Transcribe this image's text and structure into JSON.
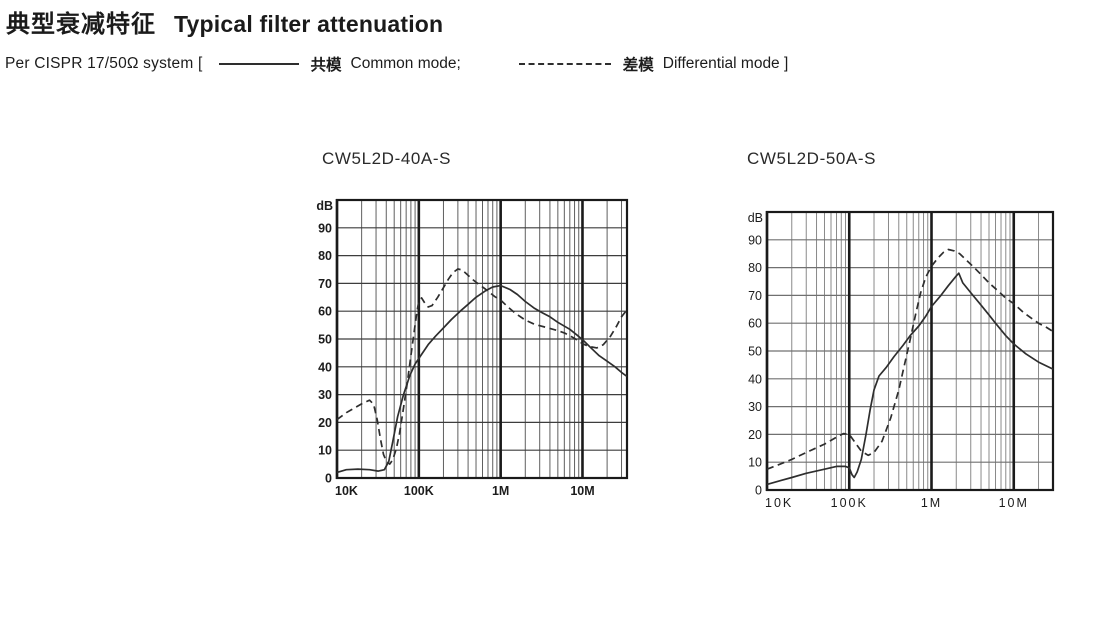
{
  "header": {
    "title_cn": "典型衰减特征",
    "title_en": "Typical filter attenuation"
  },
  "legend": {
    "prefix": "Per CISPR 17/50Ω  system  [",
    "common_cn": "共模",
    "common_en": "Common mode;",
    "diff_cn": "差模",
    "diff_en": "Differential mode ]"
  },
  "colors": {
    "text": "#1c1c1c",
    "curve": "#2e2e2e",
    "grid_decade": "#1a1a1a",
    "border": "#1a1a1a"
  },
  "chart_data": [
    {
      "type": "line",
      "title": "CW5L2D-40A-S",
      "ylabel": "dB",
      "ylim": [
        0,
        100
      ],
      "yticks": [
        0,
        10,
        20,
        30,
        40,
        50,
        60,
        70,
        80,
        90
      ],
      "xscale": "log",
      "xlim": [
        10000,
        35000000
      ],
      "xticks": [
        {
          "f": 10000,
          "label": "10K"
        },
        {
          "f": 100000,
          "label": "100K"
        },
        {
          "f": 1000000,
          "label": "1M"
        },
        {
          "f": 10000000,
          "label": "10M"
        }
      ],
      "bold_ticks": true,
      "tick_letter_spacing": 0,
      "grid_minor_color": "#5f5f5f",
      "grid_h_color": "#3d3d3d",
      "series": [
        {
          "name": "共模 Common mode",
          "style": "solid",
          "points": [
            [
              10000,
              2
            ],
            [
              13000,
              3
            ],
            [
              18000,
              3.2
            ],
            [
              25000,
              3
            ],
            [
              32000,
              2.5
            ],
            [
              38000,
              3
            ],
            [
              43000,
              6
            ],
            [
              48000,
              13
            ],
            [
              55000,
              22
            ],
            [
              65000,
              30
            ],
            [
              78000,
              37
            ],
            [
              90000,
              41
            ],
            [
              100000,
              43
            ],
            [
              130000,
              48
            ],
            [
              160000,
              51
            ],
            [
              200000,
              54
            ],
            [
              250000,
              57
            ],
            [
              320000,
              60
            ],
            [
              400000,
              62.5
            ],
            [
              500000,
              65
            ],
            [
              650000,
              67.3
            ],
            [
              800000,
              68.7
            ],
            [
              1000000,
              69.2
            ],
            [
              1300000,
              67.8
            ],
            [
              1600000,
              66
            ],
            [
              2000000,
              63.5
            ],
            [
              2600000,
              61
            ],
            [
              3200000,
              59.5
            ],
            [
              4000000,
              58
            ],
            [
              5000000,
              56
            ],
            [
              7000000,
              53.5
            ],
            [
              8500000,
              51.5
            ],
            [
              10000000,
              49.8
            ],
            [
              13000000,
              46.5
            ],
            [
              16000000,
              44
            ],
            [
              20000000,
              42
            ],
            [
              25000000,
              40
            ],
            [
              30000000,
              38
            ],
            [
              35000000,
              36.5
            ]
          ]
        },
        {
          "name": "差模 Differential mode",
          "style": "dashed",
          "points": [
            [
              10000,
              21
            ],
            [
              13000,
              23.5
            ],
            [
              17000,
              25.5
            ],
            [
              21000,
              27
            ],
            [
              25000,
              28
            ],
            [
              28000,
              26.5
            ],
            [
              31000,
              21
            ],
            [
              34000,
              14
            ],
            [
              37000,
              8.5
            ],
            [
              40000,
              6
            ],
            [
              44000,
              5
            ],
            [
              48000,
              6.5
            ],
            [
              53000,
              10.5
            ],
            [
              58000,
              16
            ],
            [
              64000,
              24
            ],
            [
              72000,
              34
            ],
            [
              80000,
              44
            ],
            [
              88000,
              53
            ],
            [
              95000,
              60
            ],
            [
              100000,
              63.5
            ],
            [
              108000,
              64.8
            ],
            [
              118000,
              63
            ],
            [
              130000,
              61.5
            ],
            [
              145000,
              62
            ],
            [
              170000,
              65
            ],
            [
              200000,
              68.5
            ],
            [
              230000,
              71.5
            ],
            [
              260000,
              73.8
            ],
            [
              300000,
              75.2
            ],
            [
              340000,
              74.8
            ],
            [
              390000,
              73.2
            ],
            [
              450000,
              71.5
            ],
            [
              550000,
              69.5
            ],
            [
              650000,
              68
            ],
            [
              750000,
              66.5
            ],
            [
              850000,
              65.2
            ],
            [
              1000000,
              64
            ],
            [
              1200000,
              61.8
            ],
            [
              1500000,
              59.3
            ],
            [
              2000000,
              56.8
            ],
            [
              2500000,
              55.5
            ],
            [
              3000000,
              54.8
            ],
            [
              4000000,
              53.8
            ],
            [
              5000000,
              53
            ],
            [
              6000000,
              52.2
            ],
            [
              8000000,
              50.2
            ],
            [
              10000000,
              48.3
            ],
            [
              12000000,
              47.3
            ],
            [
              15000000,
              46.8
            ],
            [
              18000000,
              48
            ],
            [
              22000000,
              51
            ],
            [
              26000000,
              54.5
            ],
            [
              30000000,
              58
            ],
            [
              35000000,
              60.5
            ]
          ]
        }
      ]
    },
    {
      "type": "line",
      "title": "CW5L2D-50A-S",
      "ylabel": "dB",
      "ylim": [
        0,
        100
      ],
      "yticks": [
        0,
        10,
        20,
        30,
        40,
        50,
        60,
        70,
        80,
        90
      ],
      "xscale": "log",
      "xlim": [
        10000,
        30000000
      ],
      "xticks": [
        {
          "f": 10000,
          "label": "10K"
        },
        {
          "f": 100000,
          "label": "100K"
        },
        {
          "f": 1000000,
          "label": "1M"
        },
        {
          "f": 10000000,
          "label": "10M"
        }
      ],
      "bold_ticks": false,
      "tick_letter_spacing": 2,
      "grid_minor_color": "#8a8a8a",
      "grid_h_color": "#707070",
      "series": [
        {
          "name": "共模 Common mode",
          "style": "solid",
          "points": [
            [
              10000,
              2
            ],
            [
              15000,
              3.5
            ],
            [
              20000,
              4.5
            ],
            [
              30000,
              6
            ],
            [
              50000,
              7.5
            ],
            [
              70000,
              8.5
            ],
            [
              90000,
              8.5
            ],
            [
              100000,
              8
            ],
            [
              108000,
              5.5
            ],
            [
              115000,
              4.5
            ],
            [
              125000,
              6.5
            ],
            [
              140000,
              11
            ],
            [
              160000,
              20
            ],
            [
              180000,
              29
            ],
            [
              200000,
              36
            ],
            [
              230000,
              41
            ],
            [
              280000,
              44
            ],
            [
              350000,
              48
            ],
            [
              450000,
              52
            ],
            [
              550000,
              55.5
            ],
            [
              700000,
              59
            ],
            [
              850000,
              62.5
            ],
            [
              1000000,
              66
            ],
            [
              1300000,
              70
            ],
            [
              1600000,
              73.5
            ],
            [
              2000000,
              77
            ],
            [
              2150000,
              78
            ],
            [
              2400000,
              74.5
            ],
            [
              3000000,
              71
            ],
            [
              4000000,
              66.5
            ],
            [
              5000000,
              63
            ],
            [
              6000000,
              60
            ],
            [
              8000000,
              55.5
            ],
            [
              10000000,
              52.5
            ],
            [
              14000000,
              49
            ],
            [
              20000000,
              46
            ],
            [
              30000000,
              43.5
            ]
          ]
        },
        {
          "name": "差模 Differential mode",
          "style": "dashed",
          "points": [
            [
              10000,
              7.5
            ],
            [
              15000,
              9.5
            ],
            [
              20000,
              11
            ],
            [
              30000,
              13.5
            ],
            [
              50000,
              16.5
            ],
            [
              70000,
              19
            ],
            [
              85000,
              20.3
            ],
            [
              100000,
              20
            ],
            [
              115000,
              17.5
            ],
            [
              140000,
              14
            ],
            [
              170000,
              12.5
            ],
            [
              200000,
              13.5
            ],
            [
              250000,
              17.5
            ],
            [
              320000,
              26
            ],
            [
              400000,
              36
            ],
            [
              460000,
              44
            ],
            [
              550000,
              54
            ],
            [
              650000,
              64
            ],
            [
              740000,
              71
            ],
            [
              850000,
              76.5
            ],
            [
              1000000,
              80.5
            ],
            [
              1200000,
              83.5
            ],
            [
              1400000,
              85.5
            ],
            [
              1600000,
              86.5
            ],
            [
              1900000,
              86
            ],
            [
              2200000,
              85
            ],
            [
              2700000,
              82.5
            ],
            [
              3300000,
              80
            ],
            [
              4000000,
              77.5
            ],
            [
              5000000,
              74.5
            ],
            [
              6500000,
              71.5
            ],
            [
              8000000,
              69
            ],
            [
              10000000,
              67
            ],
            [
              13000000,
              64
            ],
            [
              16000000,
              62
            ],
            [
              20000000,
              60
            ],
            [
              25000000,
              58.5
            ],
            [
              30000000,
              57
            ]
          ]
        }
      ]
    }
  ]
}
